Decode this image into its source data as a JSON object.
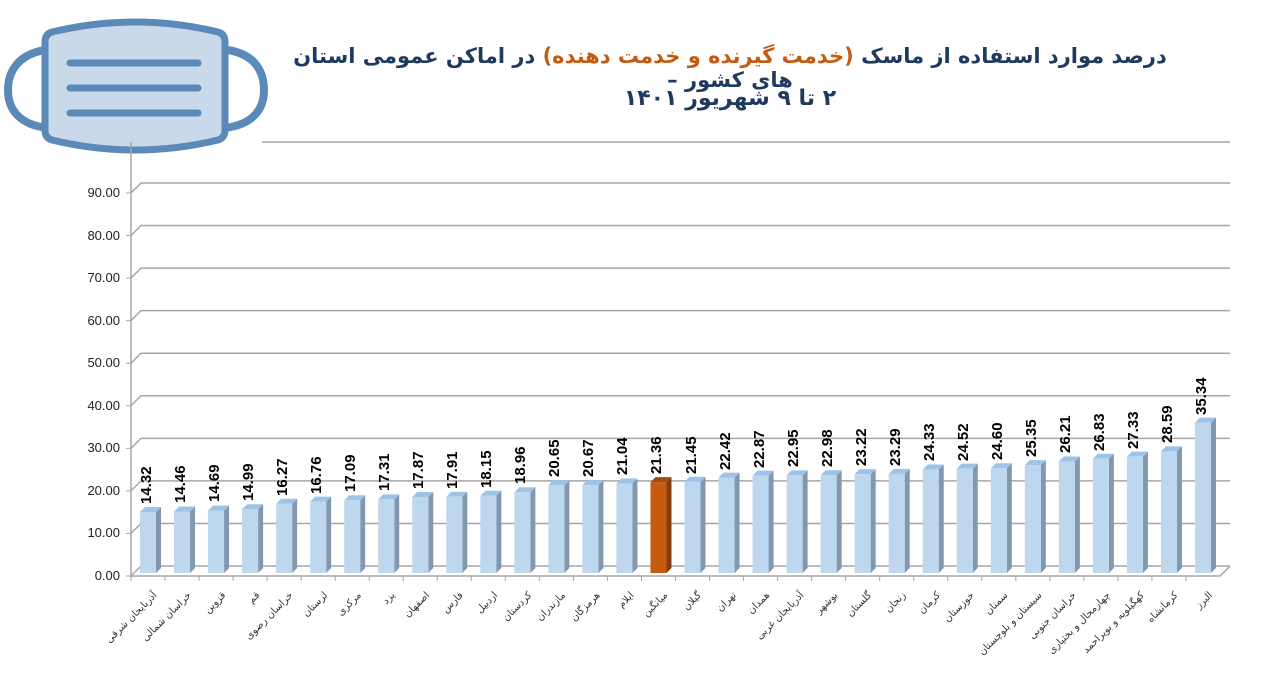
{
  "title": {
    "line1_part1": "درصد موارد استفاده از ماسک ",
    "line1_highlight": "(خدمت گیرنده و خدمت دهنده)",
    "line1_part2": " در اماکن عمومی استان های کشور –",
    "line2": "۲ تا ۹ شهریور ۱۴۰۱"
  },
  "colors": {
    "bar_front": "#bdd7ee",
    "bar_side": "#8497b0",
    "bar_top": "#9dc3e6",
    "highlight_front": "#c55a11",
    "highlight_side": "#843c0c",
    "title": "#1f3a5f",
    "title_highlight": "#c55a11",
    "grid": "#a6a6a6",
    "mask_stroke": "#5b8ab8",
    "mask_fill": "#c9d9ea"
  },
  "chart_data": {
    "type": "bar",
    "title": "درصد موارد استفاده از ماسک (خدمت گیرنده و خدمت دهنده) در اماکن عمومی استان های کشور – ۲ تا ۹ شهریور ۱۴۰۱",
    "xlabel": "",
    "ylabel": "",
    "ylim": [
      0,
      90
    ],
    "yticks": [
      "0.00",
      "10.00",
      "20.00",
      "30.00",
      "40.00",
      "50.00",
      "60.00",
      "70.00",
      "80.00",
      "90.00"
    ],
    "grid": true,
    "style": "3d-column",
    "highlight_category": "میانگین",
    "categories": [
      "آذربایجان شرقی",
      "خراسان شمالی",
      "قزوین",
      "قم",
      "خراسان رضوی",
      "لرستان",
      "مرکزی",
      "یزد",
      "اصفهان",
      "فارس",
      "اردبیل",
      "کردستان",
      "مازندران",
      "هرمزگان",
      "ایلام",
      "میانگین",
      "گیلان",
      "تهران",
      "همدان",
      "آذربایجان غربی",
      "بوشهر",
      "گلستان",
      "زنجان",
      "کرمان",
      "خوزستان",
      "سمنان",
      "سیستان و بلوچستان",
      "خراسان جنوبی",
      "چهارمحال و بختیاری",
      "کهگیلویه و بویراحمد",
      "کرمانشاه",
      "البرز"
    ],
    "values": [
      14.32,
      14.46,
      14.69,
      14.99,
      16.27,
      16.76,
      17.09,
      17.31,
      17.87,
      17.91,
      18.15,
      18.96,
      20.65,
      20.67,
      21.04,
      21.36,
      21.45,
      22.42,
      22.87,
      22.95,
      22.98,
      23.22,
      23.29,
      24.33,
      24.52,
      24.6,
      25.35,
      26.21,
      26.83,
      27.33,
      28.59,
      35.34
    ],
    "value_labels": [
      "14.32",
      "14.46",
      "14.69",
      "14.99",
      "16.27",
      "16.76",
      "17.09",
      "17.31",
      "17.87",
      "17.91",
      "18.15",
      "18.96",
      "20.65",
      "20.67",
      "21.04",
      "21.36",
      "21.45",
      "22.42",
      "22.87",
      "22.95",
      "22.98",
      "23.22",
      "23.29",
      "24.33",
      "24.52",
      "24.60",
      "25.35",
      "26.21",
      "26.83",
      "27.33",
      "28.59",
      "35.34"
    ]
  }
}
